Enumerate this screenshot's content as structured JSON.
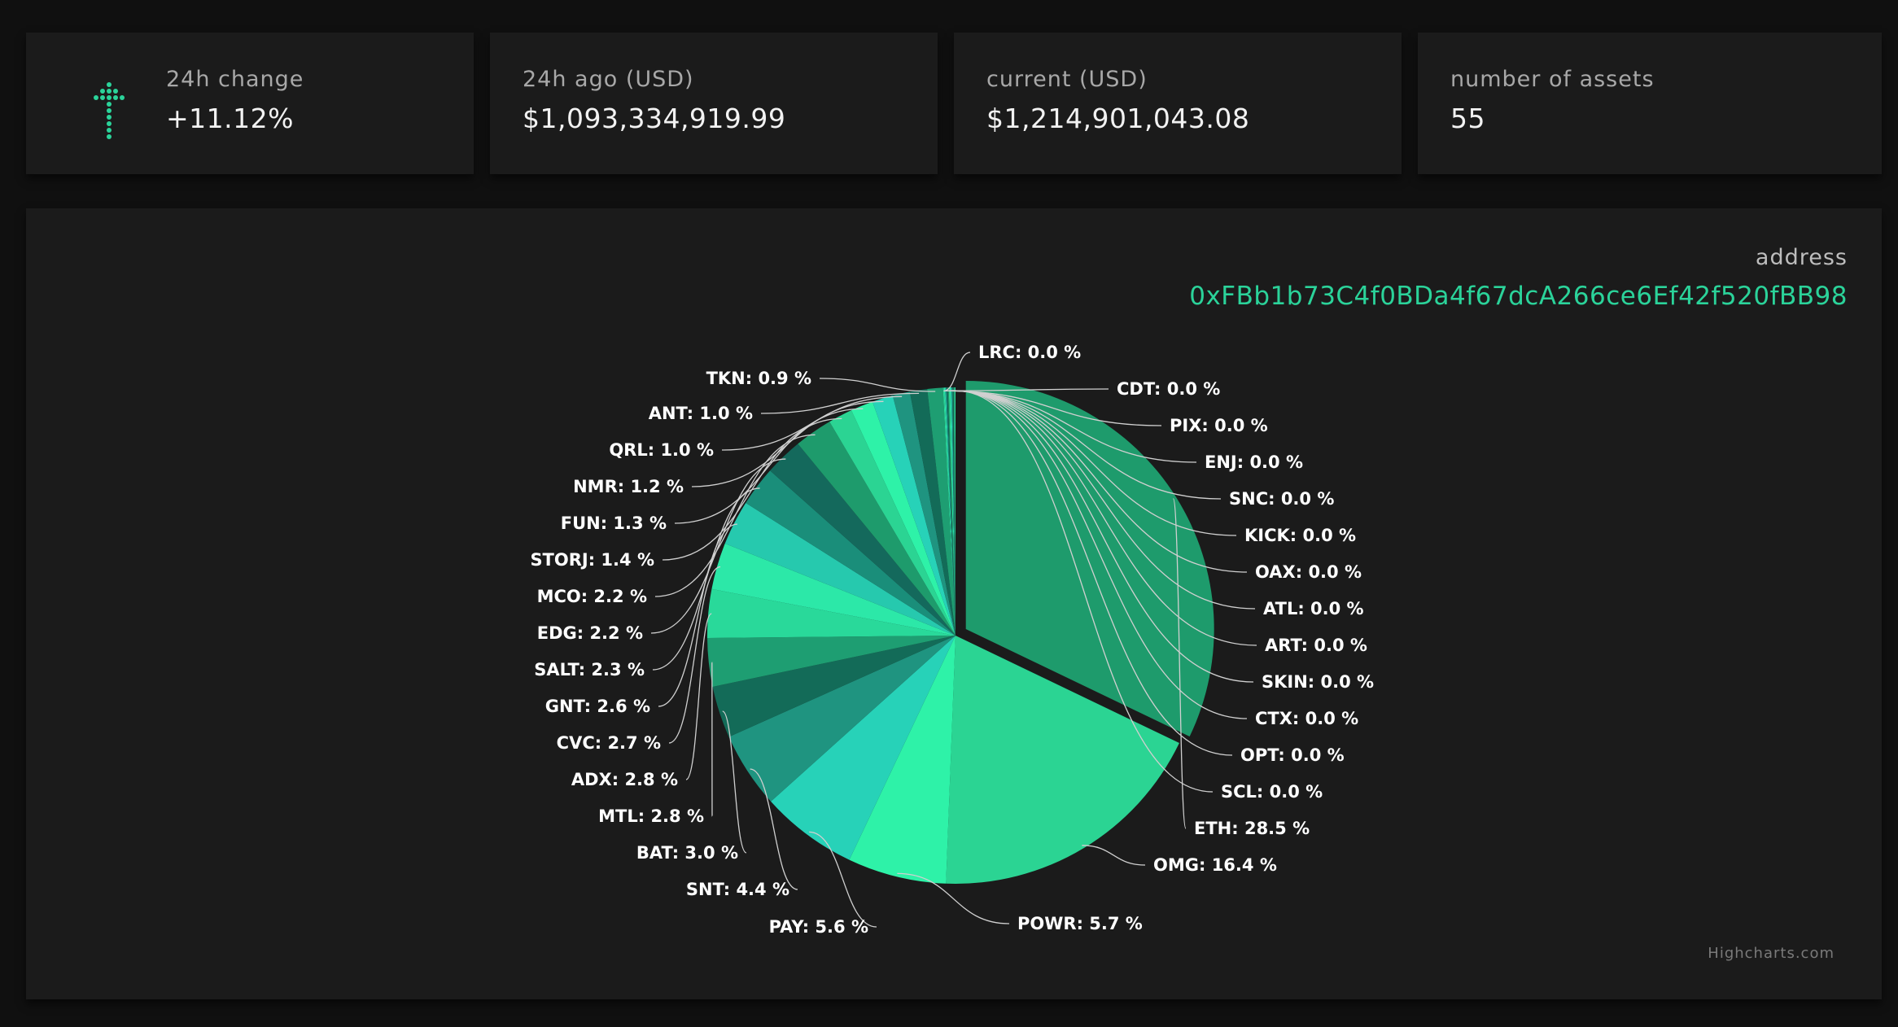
{
  "stats": {
    "change": {
      "label": "24h change",
      "value": "+11.12%",
      "icon": "trend-icon"
    },
    "ago": {
      "label": "24h ago (USD)",
      "value": "$1,093,334,919.99"
    },
    "current": {
      "label": "current (USD)",
      "value": "$1,214,901,043.08"
    },
    "assets": {
      "label": "number of assets",
      "value": "55"
    }
  },
  "address": {
    "label": "address",
    "value": "0xFBb1b73C4f0BDa4f67dcA266ce6Ef42f520fBB98"
  },
  "credits": "Highcharts.com",
  "colors": {
    "accent": "#2bd39a",
    "slices": [
      "#1e9b6c",
      "#2bd493",
      "#2ef2a8",
      "#27d2b8",
      "#1f9480",
      "#136b58",
      "#1e9e72",
      "#29d99a",
      "#2ce8a8",
      "#26c9ae",
      "#1a8e7a",
      "#14695c"
    ]
  },
  "chart_data": {
    "type": "pie",
    "title": "",
    "series": [
      {
        "values": [
          {
            "name": "ETH",
            "y": 28.5,
            "label": "ETH: 28.5 %",
            "sliced": true
          },
          {
            "name": "OMG",
            "y": 16.4,
            "label": "OMG: 16.4 %"
          },
          {
            "name": "POWR",
            "y": 5.7,
            "label": "POWR: 5.7 %"
          },
          {
            "name": "PAY",
            "y": 5.6,
            "label": "PAY: 5.6 %"
          },
          {
            "name": "SNT",
            "y": 4.4,
            "label": "SNT: 4.4 %"
          },
          {
            "name": "BAT",
            "y": 3.0,
            "label": "BAT: 3.0 %"
          },
          {
            "name": "MTL",
            "y": 2.8,
            "label": "MTL: 2.8 %"
          },
          {
            "name": "ADX",
            "y": 2.8,
            "label": "ADX: 2.8 %"
          },
          {
            "name": "CVC",
            "y": 2.7,
            "label": "CVC: 2.7 %"
          },
          {
            "name": "GNT",
            "y": 2.6,
            "label": "GNT: 2.6 %"
          },
          {
            "name": "SALT",
            "y": 2.3,
            "label": "SALT: 2.3 %"
          },
          {
            "name": "EDG",
            "y": 2.2,
            "label": "EDG: 2.2 %"
          },
          {
            "name": "MCO",
            "y": 2.2,
            "label": "MCO: 2.2 %"
          },
          {
            "name": "STORJ",
            "y": 1.4,
            "label": "STORJ: 1.4 %"
          },
          {
            "name": "FUN",
            "y": 1.3,
            "label": "FUN: 1.3 %"
          },
          {
            "name": "NMR",
            "y": 1.2,
            "label": "NMR: 1.2 %"
          },
          {
            "name": "QRL",
            "y": 1.0,
            "label": "QRL: 1.0 %"
          },
          {
            "name": "ANT",
            "y": 1.0,
            "label": "ANT: 1.0 %"
          },
          {
            "name": "TKN",
            "y": 0.9,
            "label": "TKN: 0.9 %"
          },
          {
            "name": "LRC",
            "y": 0.0,
            "label": "LRC: 0.0 %"
          },
          {
            "name": "CDT",
            "y": 0.0,
            "label": "CDT: 0.0 %"
          },
          {
            "name": "PIX",
            "y": 0.0,
            "label": "PIX: 0.0 %"
          },
          {
            "name": "ENJ",
            "y": 0.0,
            "label": "ENJ: 0.0 %"
          },
          {
            "name": "SNC",
            "y": 0.0,
            "label": "SNC: 0.0 %"
          },
          {
            "name": "KICK",
            "y": 0.0,
            "label": "KICK: 0.0 %"
          },
          {
            "name": "OAX",
            "y": 0.0,
            "label": "OAX: 0.0 %"
          },
          {
            "name": "ATL",
            "y": 0.0,
            "label": "ATL: 0.0 %"
          },
          {
            "name": "ART",
            "y": 0.0,
            "label": "ART: 0.0 %"
          },
          {
            "name": "SKIN",
            "y": 0.0,
            "label": "SKIN: 0.0 %"
          },
          {
            "name": "CTX",
            "y": 0.0,
            "label": "CTX: 0.0 %"
          },
          {
            "name": "OPT",
            "y": 0.0,
            "label": "OPT: 0.0 %"
          },
          {
            "name": "SCL",
            "y": 0.0,
            "label": "SCL: 0.0 %"
          }
        ]
      }
    ]
  }
}
